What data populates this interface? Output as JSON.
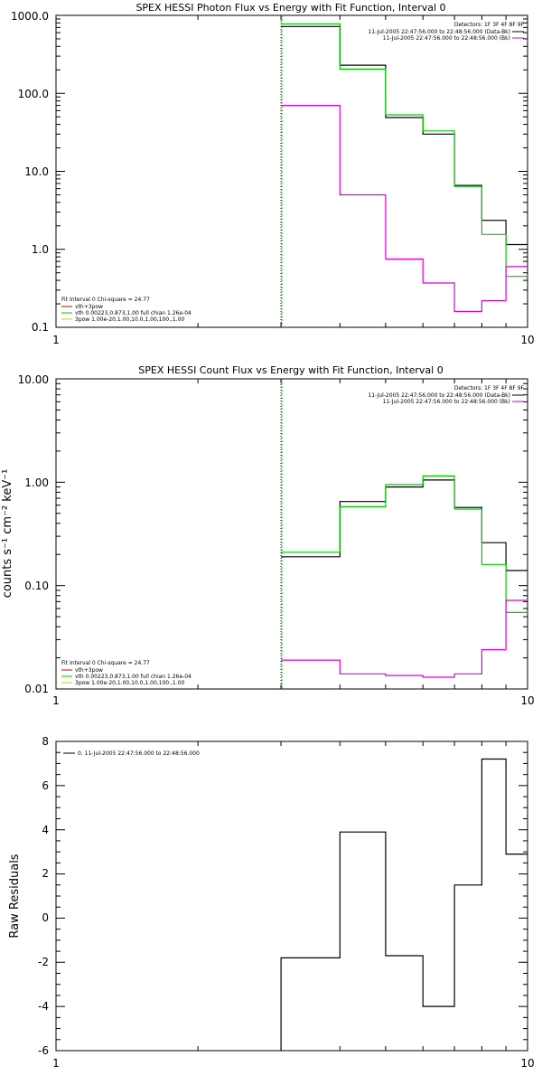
{
  "chart_data": [
    {
      "type": "line",
      "title": "SPEX HESSI Photon Flux vs Energy with Fit Function, Interval 0",
      "xscale": "log",
      "yscale": "log",
      "xlim": [
        1,
        10
      ],
      "ylim": [
        0.1,
        1000
      ],
      "xticks": [
        "1",
        "10"
      ],
      "yticks": [
        "0.1",
        "1.0",
        "10.0",
        "100.0",
        "1000.0"
      ],
      "vline": 3.0,
      "edges": [
        3,
        4,
        5,
        6,
        7,
        8,
        9,
        10
      ],
      "series": [
        {
          "color": "#000000",
          "values": [
            720,
            230,
            49,
            30,
            6.6,
            2.35,
            1.15
          ]
        },
        {
          "color": "#00cc00",
          "values": [
            780,
            205,
            53,
            33,
            6.4,
            1.55,
            0.45
          ]
        },
        {
          "color": "#dd00dd",
          "values": [
            70,
            5.0,
            0.75,
            0.37,
            0.16,
            0.22,
            0.6
          ]
        }
      ],
      "legend_tr": {
        "header": "Detectors: 1F 3F 4F 8F 9F",
        "items": [
          {
            "text": "11-Jul-2005 22:47:56.000 to 22:48:56.000 (Data-Bk)",
            "color": "#000000"
          },
          {
            "text": "11-Jul-2005 22:47:56.000 to 22:48:56.000 (Bk)",
            "color": "#dd00dd"
          }
        ]
      },
      "legend_bl": {
        "header": "Fit Interval  0    Chi-square = 24.77",
        "items": [
          {
            "text": "vth+3pow",
            "color": "#dd0000"
          },
          {
            "text": "vth 0.00223,0.873,1.00  full chian 1.26e-04",
            "color": "#00cc00"
          },
          {
            "text": "3pow 1.00e-20,1.00,10.0,1.00,100.,1.00",
            "color": "#cccc00"
          }
        ]
      }
    },
    {
      "type": "line",
      "title": "SPEX HESSI Count Flux vs Energy with Fit Function, Interval 0",
      "xscale": "log",
      "yscale": "log",
      "xlim": [
        1,
        10
      ],
      "ylim": [
        0.01,
        10
      ],
      "xticks": [
        "1",
        "10"
      ],
      "yticks": [
        "0.01",
        "0.10",
        "1.00",
        "10.00"
      ],
      "ylabel": "counts s⁻¹ cm⁻² keV⁻¹",
      "vline": 3.0,
      "edges": [
        3,
        4,
        5,
        6,
        7,
        8,
        9,
        10
      ],
      "series": [
        {
          "color": "#000000",
          "values": [
            0.19,
            0.65,
            0.9,
            1.05,
            0.57,
            0.26,
            0.14
          ]
        },
        {
          "color": "#00cc00",
          "values": [
            0.21,
            0.58,
            0.95,
            1.15,
            0.55,
            0.16,
            0.055
          ]
        },
        {
          "color": "#dd00dd",
          "values": [
            0.019,
            0.014,
            0.0135,
            0.013,
            0.014,
            0.024,
            0.072
          ]
        }
      ],
      "legend_tr": {
        "header": "Detectors: 1F 3F 4F 8F 9F",
        "items": [
          {
            "text": "11-Jul-2005 22:47:56.000 to 22:48:56.000 (Data-Bk)",
            "color": "#000000"
          },
          {
            "text": "11-Jul-2005 22:47:56.000 to 22:48:56.000 (Bk)",
            "color": "#dd00dd"
          }
        ]
      },
      "legend_bl": {
        "header": "Fit Interval  0    Chi-square = 24.77",
        "items": [
          {
            "text": "vth+3pow",
            "color": "#dd0000"
          },
          {
            "text": "vth 0.00223,0.873,1.00  full chian 1.26e-04",
            "color": "#00cc00"
          },
          {
            "text": "3pow 1.00e-20,1.00,10.0,1.00,100.,1.00",
            "color": "#cccc00"
          }
        ]
      }
    },
    {
      "type": "line",
      "title": "",
      "xscale": "log",
      "yscale": "linear",
      "xlim": [
        1,
        10
      ],
      "ylim": [
        -6,
        8
      ],
      "xticks": [
        "1",
        "10"
      ],
      "yticks": [
        "-6",
        "-4",
        "-2",
        "0",
        "2",
        "4",
        "6",
        "8"
      ],
      "ylabel": "Raw Residuals",
      "edges": [
        3,
        4,
        5,
        6,
        7,
        8,
        9,
        10
      ],
      "series": [
        {
          "color": "#000000",
          "values": [
            -1.8,
            3.9,
            -1.7,
            -4.0,
            1.5,
            7.2,
            2.9
          ]
        }
      ],
      "legend_tl": {
        "items": [
          {
            "text": "0. 11-Jul-2005 22:47:56.000 to 22:48:56.000",
            "color": "#000000"
          }
        ]
      }
    }
  ]
}
